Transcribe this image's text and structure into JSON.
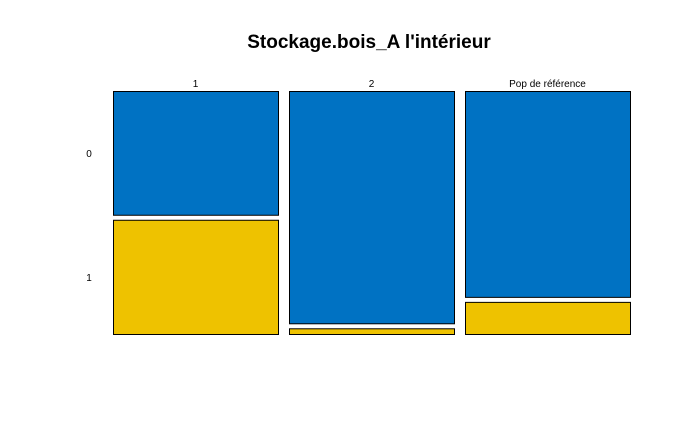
{
  "chart_data": {
    "type": "mosaic",
    "title": "Stockage.bois_A l'intérieur",
    "columns": [
      "1",
      "2",
      "Pop de référence"
    ],
    "rows": [
      "0",
      "1"
    ],
    "column_widths": [
      1,
      1,
      1
    ],
    "proportions": [
      [
        0.52,
        0.48
      ],
      [
        0.976,
        0.024
      ],
      [
        0.865,
        0.135
      ]
    ],
    "colors": {
      "0": "#0072C3",
      "1": "#EEC200"
    },
    "grid": false,
    "legend": "none"
  }
}
